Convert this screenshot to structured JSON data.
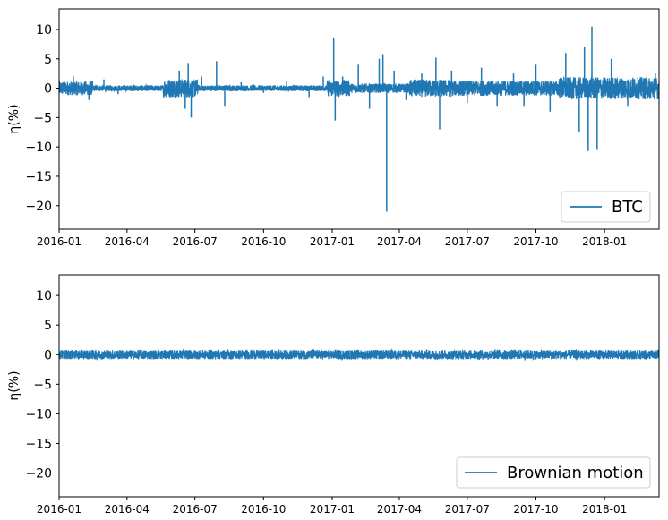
{
  "chart_data": [
    {
      "type": "line",
      "ylabel": "η(%)",
      "xlim": [
        "2016-01-01",
        "2018-03-15"
      ],
      "ylim": [
        -24,
        13.5
      ],
      "yticks": [
        10,
        5,
        0,
        -5,
        -10,
        -15,
        -20
      ],
      "ytick_labels": [
        "10",
        "5",
        "0",
        "−5",
        "−10",
        "−15",
        "−20"
      ],
      "xticks": [
        "2016-01",
        "2016-04",
        "2016-07",
        "2016-10",
        "2017-01",
        "2017-04",
        "2017-07",
        "2017-10",
        "2018-01"
      ],
      "legend_position": "lower right",
      "color": "#1f77b4",
      "series": [
        {
          "name": "BTC",
          "x": [
            "2016-01-01",
            "2016-01-20",
            "2016-02-10",
            "2016-03-01",
            "2016-03-20",
            "2016-04-10",
            "2016-05-01",
            "2016-05-20",
            "2016-06-10",
            "2016-06-18",
            "2016-06-22",
            "2016-06-26",
            "2016-07-10",
            "2016-07-30",
            "2016-08-10",
            "2016-09-01",
            "2016-10-01",
            "2016-11-01",
            "2016-12-01",
            "2016-12-20",
            "2017-01-03",
            "2017-01-05",
            "2017-01-15",
            "2017-02-05",
            "2017-02-20",
            "2017-03-05",
            "2017-03-10",
            "2017-03-15",
            "2017-03-25",
            "2017-04-10",
            "2017-05-01",
            "2017-05-20",
            "2017-05-25",
            "2017-06-10",
            "2017-07-01",
            "2017-07-20",
            "2017-08-10",
            "2017-09-01",
            "2017-09-15",
            "2017-10-01",
            "2017-10-20",
            "2017-11-10",
            "2017-11-28",
            "2017-12-05",
            "2017-12-10",
            "2017-12-15",
            "2017-12-22",
            "2018-01-10",
            "2018-02-01",
            "2018-03-10"
          ],
          "values": [
            0.5,
            2.1,
            -2.0,
            1.5,
            -1.0,
            0.6,
            0.3,
            -0.8,
            3.0,
            -3.5,
            4.3,
            -5.0,
            2.0,
            4.6,
            -3.0,
            1.0,
            -0.8,
            1.2,
            -1.5,
            2.0,
            8.5,
            -5.5,
            2.0,
            4.0,
            -3.5,
            5.0,
            5.8,
            -21.0,
            3.0,
            -2.0,
            2.5,
            5.2,
            -7.0,
            3.0,
            -2.5,
            3.5,
            -3.0,
            2.5,
            -3.0,
            4.0,
            -4.0,
            6.0,
            -7.5,
            7.0,
            -10.7,
            10.5,
            -10.5,
            5.0,
            -3.0,
            2.5
          ],
          "noise_amplitude_pct": 1.0
        }
      ]
    },
    {
      "type": "line",
      "ylabel": "η(%)",
      "xlim": [
        "2016-01-01",
        "2018-03-15"
      ],
      "ylim": [
        -24,
        13.5
      ],
      "yticks": [
        10,
        5,
        0,
        -5,
        -10,
        -15,
        -20
      ],
      "ytick_labels": [
        "10",
        "5",
        "0",
        "−5",
        "−10",
        "−15",
        "−20"
      ],
      "xticks": [
        "2016-01",
        "2016-04",
        "2016-07",
        "2016-10",
        "2017-01",
        "2017-04",
        "2017-07",
        "2017-10",
        "2018-01"
      ],
      "legend_position": "lower right",
      "color": "#1f77b4",
      "series": [
        {
          "name": "Brownian motion",
          "x": [
            "2016-01-01",
            "2018-03-15"
          ],
          "values": [
            0,
            0
          ],
          "noise_amplitude_pct": 0.8
        }
      ]
    }
  ]
}
